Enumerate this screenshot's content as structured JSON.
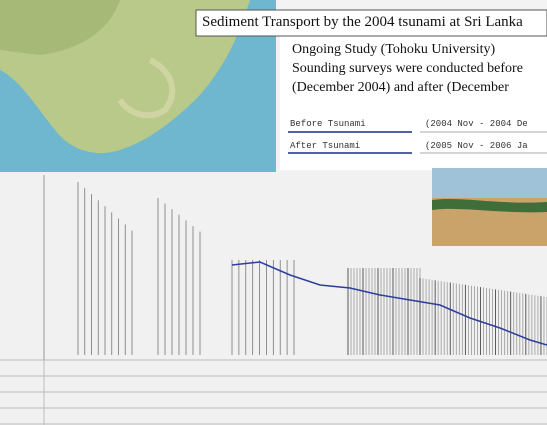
{
  "header": {
    "title": "Sediment Transport by the 2004 tsunami at Sri Lanka"
  },
  "study": {
    "heading": "Ongoing Study (Tohoku University)",
    "lines": [
      "Sounding surveys were conducted before",
      "(December 2004) and after (December"
    ]
  },
  "surveys": [
    {
      "label": "Before Tsunami",
      "period": "(2004 Nov - 2004 De"
    },
    {
      "label": "After Tsunami",
      "period": "(2005 Nov - 2006 Ja"
    }
  ]
}
